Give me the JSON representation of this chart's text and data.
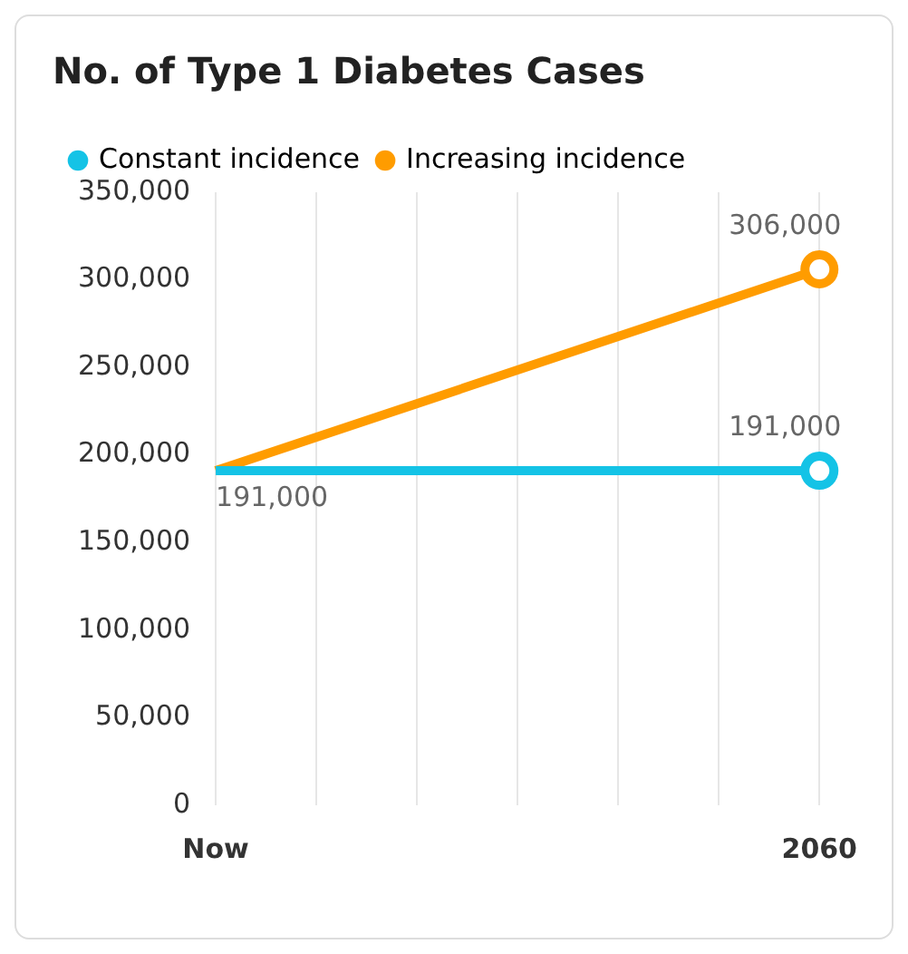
{
  "chart_data": {
    "type": "line",
    "title": "No. of Type 1 Diabetes Cases",
    "categories": [
      "Now",
      null,
      null,
      null,
      null,
      null,
      "2060"
    ],
    "series": [
      {
        "name": "Constant incidence",
        "color": "#14c3e6",
        "values": [
          191000,
          null,
          null,
          null,
          null,
          null,
          191000
        ],
        "value_labels": [
          "191,000",
          null,
          null,
          null,
          null,
          null,
          "191,000"
        ]
      },
      {
        "name": "Increasing incidence",
        "color": "#ff9c00",
        "values": [
          191000,
          null,
          null,
          null,
          null,
          null,
          306000
        ],
        "value_labels": [
          null,
          null,
          null,
          null,
          null,
          null,
          "306,000"
        ]
      }
    ],
    "ylim": [
      0,
      350000
    ],
    "yticks": [
      {
        "value": 0,
        "label": "0"
      },
      {
        "value": 50000,
        "label": "50,000"
      },
      {
        "value": 100000,
        "label": "100,000"
      },
      {
        "value": 150000,
        "label": "150,000"
      },
      {
        "value": 200000,
        "label": "200,000"
      },
      {
        "value": 250000,
        "label": "250,000"
      },
      {
        "value": 300000,
        "label": "300,000"
      },
      {
        "value": 350000,
        "label": "350,000"
      }
    ],
    "grid": "x",
    "legend": "top left",
    "marker": "circle",
    "line_style": "solid"
  }
}
